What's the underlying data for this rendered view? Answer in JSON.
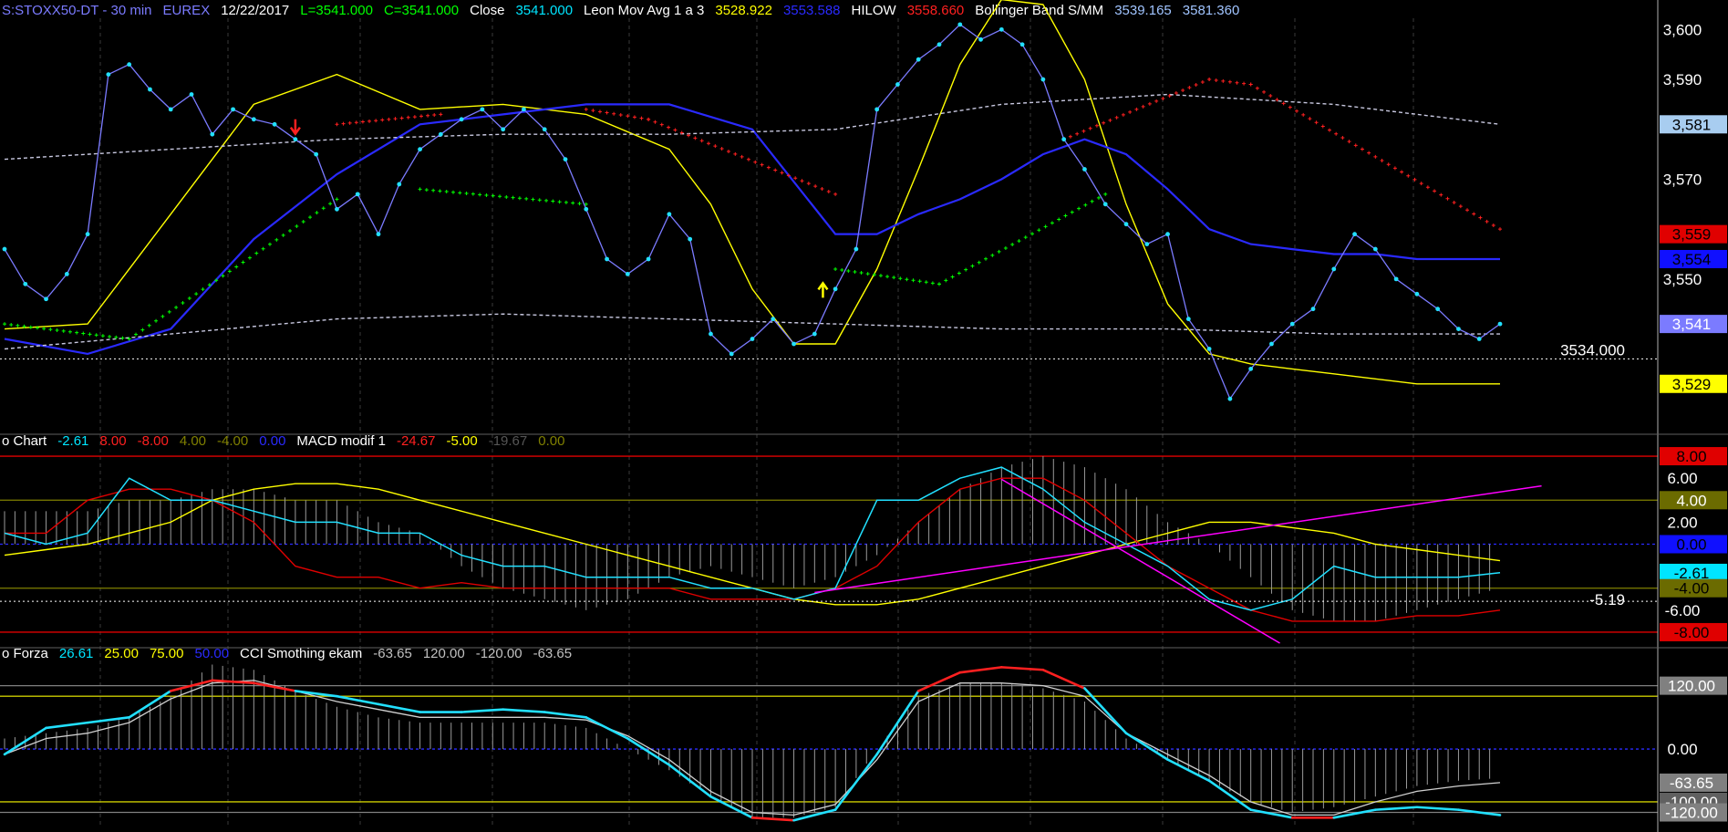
{
  "chart_data": [
    {
      "type": "line",
      "panel": "price",
      "header": [
        {
          "text": "S:STOXX50-DT - 30 min",
          "color": "#7b7bff"
        },
        {
          "text": "EUREX",
          "color": "#7b7bff"
        },
        {
          "text": "12/22/2017",
          "color": "#ffffff"
        },
        {
          "text": "L=3541.000",
          "color": "#00ff00"
        },
        {
          "text": "C=3541.000",
          "color": "#00ff00"
        },
        {
          "text": "Close",
          "color": "#ffffff"
        },
        {
          "text": "3541.000",
          "color": "#00e5ff"
        },
        {
          "text": "Leon Mov Avg 1 a 3",
          "color": "#ffffff"
        },
        {
          "text": "3528.922",
          "color": "#ffff00"
        },
        {
          "text": "3553.588",
          "color": "#2a2aff"
        },
        {
          "text": "HILOW",
          "color": "#ffffff"
        },
        {
          "text": "3558.660",
          "color": "#ff2020"
        },
        {
          "text": "Bollinger Band S/MM",
          "color": "#ffffff"
        },
        {
          "text": "3539.165",
          "color": "#a0c4ff"
        },
        {
          "text": "3581.360",
          "color": "#a0c4ff"
        }
      ],
      "ylim": [
        3520,
        3605
      ],
      "yticks": [
        "3,600",
        "3,590",
        "3,570",
        "3,550"
      ],
      "ytick_values": [
        3600,
        3590,
        3570,
        3550
      ],
      "hline": {
        "value": 3534,
        "label": "3534.000"
      },
      "x": [
        0,
        5,
        10,
        15,
        20,
        25,
        30,
        35,
        40,
        45,
        50,
        55,
        60,
        65,
        70,
        75,
        80,
        85,
        90,
        95,
        100,
        105,
        110,
        115,
        120,
        125,
        130,
        135,
        140,
        145,
        150,
        155,
        160,
        165,
        170,
        175,
        180,
        185,
        190,
        195,
        200,
        205,
        210,
        215,
        220,
        225,
        230,
        235,
        240,
        245,
        250,
        255,
        260,
        265,
        270,
        275,
        280,
        285,
        290,
        295,
        300,
        305,
        310,
        315,
        320,
        325,
        330,
        335,
        340,
        345,
        350,
        355,
        360
      ],
      "close": [
        3556,
        3549,
        3546,
        3551,
        3559,
        3591,
        3593,
        3588,
        3584,
        3587,
        3579,
        3584,
        3582,
        3581,
        3578,
        3575,
        3564,
        3567,
        3559,
        3569,
        3576,
        3579,
        3582,
        3584,
        3580,
        3584,
        3580,
        3574,
        3564,
        3554,
        3551,
        3554,
        3563,
        3558,
        3539,
        3535,
        3538,
        3542,
        3537,
        3539,
        3548,
        3556,
        3584,
        3589,
        3594,
        3597,
        3601,
        3598,
        3600,
        3597,
        3590,
        3578,
        3572,
        3565,
        3561,
        3557,
        3559,
        3542,
        3536,
        3526,
        3532,
        3537,
        3541,
        3544,
        3552,
        3559,
        3556,
        3550,
        3547,
        3544,
        3540,
        3538,
        3541
      ],
      "series": [
        {
          "name": "Leon Mov Avg 1 a 3",
          "color": "#ffff00",
          "x": [
            0,
            20,
            40,
            60,
            80,
            100,
            120,
            140,
            160,
            170,
            180,
            190,
            200,
            210,
            220,
            230,
            240,
            250,
            260,
            270,
            280,
            290,
            300,
            310,
            320,
            330,
            340,
            350,
            360
          ],
          "values": [
            3540,
            3541,
            3563,
            3585,
            3591,
            3584,
            3585,
            3583,
            3576,
            3565,
            3548,
            3537,
            3537,
            3552,
            3572,
            3593,
            3606,
            3605,
            3590,
            3565,
            3545,
            3535,
            3533,
            3532,
            3531,
            3530,
            3529,
            3529,
            3529
          ]
        },
        {
          "name": "MA",
          "color": "#2a2aff",
          "x": [
            0,
            20,
            40,
            60,
            80,
            100,
            120,
            140,
            160,
            180,
            200,
            210,
            220,
            230,
            240,
            250,
            260,
            270,
            280,
            290,
            300,
            310,
            320,
            330,
            340,
            350,
            360
          ],
          "values": [
            3538,
            3535,
            3540,
            3558,
            3571,
            3581,
            3583,
            3585,
            3585,
            3580,
            3559,
            3559,
            3563,
            3566,
            3570,
            3575,
            3578,
            3575,
            3568,
            3560,
            3557,
            3556,
            3555,
            3555,
            3554,
            3554,
            3554
          ]
        },
        {
          "name": "Bollinger upper",
          "color": "#c8c8e0",
          "x": [
            0,
            40,
            80,
            120,
            160,
            200,
            240,
            280,
            320,
            360
          ],
          "values": [
            3574,
            3576,
            3578,
            3579,
            3579,
            3580,
            3585,
            3587,
            3585,
            3581
          ]
        },
        {
          "name": "Bollinger lower",
          "color": "#c8c8e0",
          "x": [
            0,
            40,
            80,
            120,
            160,
            200,
            240,
            280,
            320,
            360
          ],
          "values": [
            3536,
            3539,
            3542,
            3543,
            3542,
            3541,
            3540,
            3540,
            3539,
            3539
          ]
        }
      ],
      "hilow_segments": [
        {
          "color": "#00ff00",
          "x": [
            0,
            30
          ],
          "values": [
            3541,
            3538
          ]
        },
        {
          "color": "#00ff00",
          "x": [
            30,
            80
          ],
          "values": [
            3538,
            3566
          ]
        },
        {
          "color": "#00ff00",
          "x": [
            100,
            140
          ],
          "values": [
            3568,
            3565
          ]
        },
        {
          "color": "#ff2020",
          "x": [
            80,
            105
          ],
          "values": [
            3581,
            3583
          ]
        },
        {
          "color": "#ff2020",
          "x": [
            140,
            155
          ],
          "values": [
            3584,
            3582
          ]
        },
        {
          "color": "#ff2020",
          "x": [
            155,
            200
          ],
          "values": [
            3582,
            3567
          ]
        },
        {
          "color": "#00ff00",
          "x": [
            200,
            225
          ],
          "values": [
            3552,
            3549
          ]
        },
        {
          "color": "#00ff00",
          "x": [
            225,
            265
          ],
          "values": [
            3549,
            3567
          ]
        },
        {
          "color": "#ff2020",
          "x": [
            255,
            290
          ],
          "values": [
            3578,
            3590
          ]
        },
        {
          "color": "#ff2020",
          "x": [
            290,
            300
          ],
          "values": [
            3590,
            3589
          ]
        },
        {
          "color": "#ff2020",
          "x": [
            300,
            360
          ],
          "values": [
            3589,
            3560
          ]
        }
      ],
      "arrows": [
        {
          "x": 70,
          "value": 3578,
          "color": "#ff2020",
          "dir": "down"
        },
        {
          "x": 197,
          "value": 3551,
          "color": "#ffff00",
          "dir": "up"
        }
      ],
      "tags": [
        {
          "text": "3,581",
          "value": 3581,
          "bg": "#a8cdf0",
          "fg": "#000000"
        },
        {
          "text": "3,559",
          "value": 3559,
          "bg": "#e00000",
          "fg": "#000000"
        },
        {
          "text": "3,554",
          "value": 3554,
          "bg": "#1010ff",
          "fg": "#000000"
        },
        {
          "text": "3,541",
          "value": 3541,
          "bg": "#7b7bff",
          "fg": "#ffffff"
        },
        {
          "text": "3,529",
          "value": 3529,
          "bg": "#ffff00",
          "fg": "#000000"
        }
      ]
    },
    {
      "type": "line",
      "panel": "macd",
      "header": [
        {
          "text": "o Chart",
          "color": "#ffffff"
        },
        {
          "text": "-2.61",
          "color": "#00e5ff"
        },
        {
          "text": "8.00",
          "color": "#ff2020"
        },
        {
          "text": "-8.00",
          "color": "#ff2020"
        },
        {
          "text": "4.00",
          "color": "#808000"
        },
        {
          "text": "-4.00",
          "color": "#808000"
        },
        {
          "text": "0.00",
          "color": "#2a2aff"
        },
        {
          "text": "MACD modif 1",
          "color": "#ffffff"
        },
        {
          "text": "-24.67",
          "color": "#ff2020"
        },
        {
          "text": "-5.00",
          "color": "#ffff00"
        },
        {
          "text": "-19.67",
          "color": "#555555"
        },
        {
          "text": "0.00",
          "color": "#808000"
        }
      ],
      "ylim": [
        -9,
        9
      ],
      "yticks": [
        "6.00",
        "2.00",
        "-6.00"
      ],
      "ytick_values": [
        6,
        2,
        -6
      ],
      "hlines": [
        {
          "value": 8,
          "color": "#e00000"
        },
        {
          "value": 4,
          "color": "#808000"
        },
        {
          "value": 0,
          "color": "#2a2aff",
          "dash": true
        },
        {
          "value": -4,
          "color": "#808000"
        },
        {
          "value": -8,
          "color": "#e00000"
        }
      ],
      "ref_line": {
        "value": -5.19,
        "label": "-5.19"
      },
      "x": [
        0,
        10,
        20,
        30,
        40,
        50,
        60,
        70,
        80,
        90,
        100,
        110,
        120,
        130,
        140,
        150,
        160,
        170,
        180,
        190,
        200,
        210,
        220,
        230,
        240,
        250,
        260,
        270,
        280,
        290,
        300,
        310,
        320,
        330,
        340,
        350,
        360
      ],
      "cyan": [
        1,
        0,
        1,
        6,
        4,
        4,
        3,
        2,
        2,
        1,
        1,
        -1,
        -2,
        -2,
        -3,
        -3,
        -3,
        -4,
        -4,
        -5,
        -4,
        4,
        4,
        6,
        7,
        5,
        2,
        0,
        -2,
        -5,
        -6,
        -5,
        -2,
        -3,
        -3,
        -3,
        -2.6
      ],
      "red": [
        1,
        1,
        4,
        5,
        5,
        4,
        2,
        -2,
        -3,
        -3,
        -4,
        -3.5,
        -4,
        -4,
        -4,
        -4,
        -4,
        -5,
        -5,
        -5,
        -4,
        -2,
        2,
        5,
        6,
        6,
        4,
        1,
        -2,
        -4,
        -6,
        -7,
        -7,
        -7,
        -6.5,
        -6.5,
        -6
      ],
      "yellow": [
        -1,
        -0.5,
        0,
        1,
        2,
        4,
        5,
        5.5,
        5.5,
        5,
        4,
        3,
        2,
        1,
        0,
        -1,
        -2,
        -3,
        -4,
        -5,
        -5.5,
        -5.5,
        -5,
        -4,
        -3,
        -2,
        -1,
        0,
        1,
        2,
        2,
        1.5,
        1,
        0,
        -0.5,
        -1,
        -1.5
      ],
      "hist": [
        3,
        3,
        3,
        4,
        4,
        5,
        5,
        4,
        4,
        2,
        1,
        -2,
        -4,
        -5,
        -6,
        -5,
        -3,
        -2,
        -3,
        -4,
        -3,
        -1,
        2,
        5,
        7,
        8,
        7,
        5,
        2,
        0,
        -3,
        -6,
        -7,
        -7,
        -6,
        -5,
        -4
      ],
      "trendlines": [
        {
          "color": "#ff00ff",
          "x": [
            195,
            370
          ],
          "values": [
            -4.4,
            5.3
          ]
        },
        {
          "color": "#ff00ff",
          "x": [
            240,
            307
          ],
          "values": [
            5.9,
            -9
          ]
        }
      ],
      "tags": [
        {
          "text": "8.00",
          "value": 8,
          "bg": "#e00000",
          "fg": "#000000"
        },
        {
          "text": "4.00",
          "value": 4,
          "bg": "#6b6b00",
          "fg": "#ffffff"
        },
        {
          "text": "0.00",
          "value": 0,
          "bg": "#1010ff",
          "fg": "#000000"
        },
        {
          "text": "-2.61",
          "value": -2.61,
          "bg": "#00e5ff",
          "fg": "#000000"
        },
        {
          "text": "-4.00",
          "value": -4,
          "bg": "#6b6b00",
          "fg": "#000000"
        },
        {
          "text": "-8.00",
          "value": -8,
          "bg": "#e00000",
          "fg": "#000000"
        }
      ]
    },
    {
      "type": "line",
      "panel": "cci",
      "header": [
        {
          "text": "o Forza",
          "color": "#ffffff"
        },
        {
          "text": "26.61",
          "color": "#00e5ff"
        },
        {
          "text": "25.00",
          "color": "#ffff00"
        },
        {
          "text": "75.00",
          "color": "#ffff00"
        },
        {
          "text": "50.00",
          "color": "#2a2aff"
        },
        {
          "text": "CCI Smothing ekam",
          "color": "#ffffff"
        },
        {
          "text": "-63.65",
          "color": "#c0c0c0"
        },
        {
          "text": "120.00",
          "color": "#c0c0c0"
        },
        {
          "text": "-120.00",
          "color": "#c0c0c0"
        },
        {
          "text": "-63.65",
          "color": "#c0c0c0"
        }
      ],
      "ylim": [
        -145,
        185
      ],
      "yticks": [
        "0.00"
      ],
      "ytick_values": [
        0
      ],
      "hlines": [
        {
          "value": 120,
          "color": "#808080"
        },
        {
          "value": 100,
          "color": "#cccc00"
        },
        {
          "value": 0,
          "color": "#2a2aff",
          "dash": true
        },
        {
          "value": -100,
          "color": "#cccc00"
        },
        {
          "value": -120,
          "color": "#808080"
        }
      ],
      "x": [
        0,
        10,
        20,
        30,
        40,
        50,
        60,
        70,
        80,
        90,
        100,
        110,
        120,
        130,
        140,
        150,
        160,
        170,
        180,
        190,
        200,
        210,
        220,
        230,
        240,
        250,
        260,
        270,
        280,
        290,
        300,
        310,
        320,
        330,
        340,
        350,
        360
      ],
      "cyan": [
        -10,
        40,
        50,
        60,
        110,
        130,
        125,
        110,
        100,
        85,
        70,
        70,
        75,
        70,
        60,
        20,
        -30,
        -90,
        -130,
        -135,
        -115,
        -10,
        110,
        145,
        155,
        150,
        115,
        30,
        -20,
        -60,
        -115,
        -130,
        -130,
        -115,
        -110,
        -115,
        -125
      ],
      "white": [
        -10,
        20,
        30,
        50,
        95,
        125,
        130,
        110,
        90,
        75,
        60,
        60,
        60,
        60,
        55,
        25,
        -20,
        -80,
        -120,
        -125,
        -105,
        -20,
        90,
        125,
        125,
        120,
        100,
        30,
        -10,
        -50,
        -100,
        -125,
        -125,
        -100,
        -80,
        -70,
        -63.65
      ],
      "hist": [
        20,
        30,
        40,
        60,
        100,
        160,
        150,
        110,
        80,
        60,
        50,
        50,
        50,
        50,
        40,
        0,
        -40,
        -90,
        -130,
        -130,
        -110,
        0,
        100,
        125,
        125,
        115,
        90,
        20,
        -20,
        -60,
        -100,
        -120,
        -110,
        -90,
        -70,
        -60,
        -55
      ],
      "tags": [
        {
          "text": "120.00",
          "value": 120,
          "bg": "#808080",
          "fg": "#ffffff"
        },
        {
          "text": "-63.65",
          "value": -63.65,
          "bg": "#808080",
          "fg": "#ffffff"
        },
        {
          "text": "-100.00",
          "value": -100,
          "bg": "#606060",
          "fg": "#ffffff"
        },
        {
          "text": "-120.00",
          "value": -120,
          "bg": "#808080",
          "fg": "#ffffff"
        }
      ]
    }
  ]
}
